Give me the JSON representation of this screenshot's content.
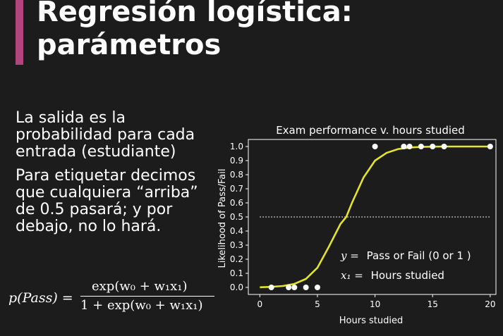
{
  "slide": {
    "title_line1": "Regresión logística:",
    "title_line2": "parámetros",
    "paragraph1": "La salida es la probabilidad para cada entrada (estudiante)",
    "paragraph2": "Para etiquetar decimos que cualquiera “arriba” de 0.5 pasará; y por debajo, no lo hará.",
    "formula": {
      "lhs": "p(Pass) =",
      "numerator": "exp(w₀ + w₁x₁)",
      "denominator": "1 + exp(w₀ + w₁x₁)"
    }
  },
  "colors": {
    "background": "#1c1c1c",
    "accent": "#b0457f",
    "curve": "#e3e32e",
    "points": "#ffffff"
  },
  "chart_data": {
    "type": "scatter",
    "title": "Exam performance v. hours studied",
    "xlabel": "Hours studied",
    "ylabel": "Likelihood of Pass/Fail",
    "xlim": [
      -1,
      20.5
    ],
    "ylim": [
      -0.05,
      1.05
    ],
    "xticks": [
      0,
      5,
      10,
      15,
      20
    ],
    "yticks": [
      0.0,
      0.1,
      0.2,
      0.3,
      0.4,
      0.5,
      0.6,
      0.7,
      0.8,
      0.9,
      1.0
    ],
    "grid": false,
    "threshold": 0.5,
    "series": [
      {
        "type": "scatter",
        "x": [
          1,
          2.5,
          3,
          4,
          5,
          10,
          12.5,
          13,
          14,
          15,
          16,
          20
        ],
        "y": [
          0,
          0,
          0,
          0,
          0,
          1,
          1,
          1,
          1,
          1,
          1,
          1
        ]
      },
      {
        "type": "line",
        "x": [
          0,
          1,
          2,
          3,
          4,
          5,
          6,
          7,
          7.5,
          8,
          9,
          10,
          11,
          12,
          13,
          14,
          15,
          16,
          17,
          18,
          19,
          20
        ],
        "y": [
          0.001,
          0.004,
          0.01,
          0.025,
          0.06,
          0.14,
          0.29,
          0.45,
          0.5,
          0.6,
          0.78,
          0.9,
          0.955,
          0.982,
          0.993,
          0.997,
          0.999,
          1,
          1,
          1,
          1,
          1
        ]
      }
    ],
    "annotations": [
      {
        "math": "y =",
        "text": "Pass or Fail (0 or 1 )"
      },
      {
        "math": "x₁ =",
        "text": "Hours studied"
      }
    ]
  }
}
